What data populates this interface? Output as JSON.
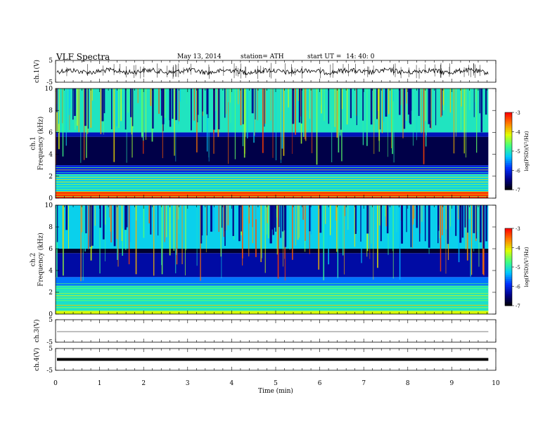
{
  "header": {
    "title": "VLF  Spectra",
    "date": "May 13, 2014",
    "station": "station= ATH",
    "start_label": "start  UT  =",
    "start_value": "14: 40: 0"
  },
  "chart_data": [
    {
      "panel": "ch1-waveform",
      "type": "line",
      "ylabel": "ch.1(V)",
      "ylim": [
        -5,
        5
      ],
      "yticks": [
        "5",
        "-5"
      ],
      "trace_level": 0,
      "trace_color": "#000000"
    },
    {
      "panel": "ch1-spectrogram",
      "type": "heatmap",
      "ylabel": "ch.1\nFrequency  (kHz)",
      "ylim": [
        0,
        10
      ],
      "yticks": [
        "0",
        "2",
        "4",
        "6",
        "8",
        "10"
      ],
      "colorbar": {
        "label": "log(PSD)(V²/Hz)",
        "range": [
          -7,
          -3
        ],
        "ticks": [
          "-3",
          "-4",
          "-5",
          "-6",
          "-7"
        ]
      },
      "bands_kHz": [
        {
          "from": 0,
          "to": 0.6,
          "logpsd": -3.2
        },
        {
          "from": 0.6,
          "to": 2.2,
          "logpsd": -5.2
        },
        {
          "from": 2.2,
          "to": 3.0,
          "logpsd": -6.0
        },
        {
          "from": 3.0,
          "to": 5.6,
          "logpsd": -6.7
        },
        {
          "from": 5.6,
          "to": 6.0,
          "logpsd": -6.2
        },
        {
          "from": 6.0,
          "to": 10.0,
          "logpsd": -5.0
        }
      ]
    },
    {
      "panel": "ch2-spectrogram",
      "type": "heatmap",
      "ylabel": "ch.2\nFrequency  (kHz)",
      "ylim": [
        0,
        10
      ],
      "yticks": [
        "0",
        "2",
        "4",
        "6",
        "8",
        "10"
      ],
      "colorbar": {
        "label": "log(PSD)(V²/Hz)",
        "range": [
          -7,
          -3
        ],
        "ticks": [
          "-3",
          "-4",
          "-5",
          "-6",
          "-7"
        ]
      },
      "bands_kHz": [
        {
          "from": 0,
          "to": 0.3,
          "logpsd": -4.2
        },
        {
          "from": 0.3,
          "to": 2.6,
          "logpsd": -5.0
        },
        {
          "from": 2.6,
          "to": 3.4,
          "logpsd": -5.6
        },
        {
          "from": 3.4,
          "to": 5.6,
          "logpsd": -6.3
        },
        {
          "from": 5.6,
          "to": 6.0,
          "logpsd": -6.8
        },
        {
          "from": 6.0,
          "to": 10.0,
          "logpsd": -5.2
        }
      ]
    },
    {
      "panel": "ch3-waveform",
      "type": "line",
      "ylabel": "ch.3(V)",
      "ylim": [
        -5,
        5
      ],
      "yticks": [
        "5",
        "-5"
      ],
      "trace_level": 0
    },
    {
      "panel": "ch4-waveform",
      "type": "line",
      "ylabel": "ch.4(V)",
      "ylim": [
        -5,
        5
      ],
      "yticks": [
        "5",
        "-5"
      ],
      "trace_level": 0
    }
  ],
  "x_axis": {
    "label": "Time  (min)",
    "range": [
      0,
      10
    ],
    "data_end": 9.83,
    "ticks": [
      "0",
      "1",
      "2",
      "3",
      "4",
      "5",
      "6",
      "7",
      "8",
      "9",
      "10"
    ]
  },
  "colors": {
    "colormap": [
      "#000000",
      "#00008a",
      "#0030ff",
      "#00c8ff",
      "#40ff80",
      "#e0ff00",
      "#ff8000",
      "#ff0000"
    ]
  }
}
